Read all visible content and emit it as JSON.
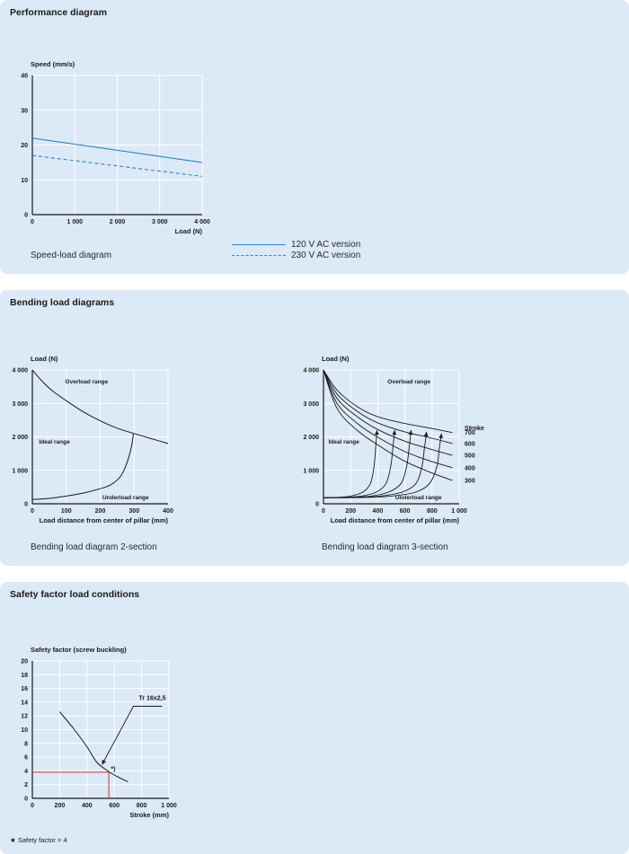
{
  "sections": {
    "performance": {
      "title": "Performance diagram",
      "caption": "Speed-load diagram",
      "legend": [
        {
          "label": "120 V AC version",
          "style": "solid",
          "color": "#2e86c1"
        },
        {
          "label": "230 V AC version",
          "style": "dashed",
          "color": "#2e86c1"
        }
      ]
    },
    "bending": {
      "title": "Bending load diagrams",
      "caption_2": "Bending load diagram 2-section",
      "caption_3": "Bending load diagram 3-section"
    },
    "safety": {
      "title": "Safety factor load conditions",
      "footnote": "Safety factor = 4"
    }
  },
  "chart_data": [
    {
      "type": "line",
      "ylabel": "Speed (mm/s)",
      "xlabel": "Load (N)",
      "xlim": [
        0,
        4000
      ],
      "ylim": [
        0,
        40
      ],
      "xticks": [
        "0",
        "1 000",
        "2 000",
        "3 000",
        "4 000"
      ],
      "yticks": [
        "0",
        "10",
        "20",
        "30",
        "40"
      ],
      "grid": true,
      "series": [
        {
          "name": "120 V AC version",
          "style": "solid",
          "color": "#2e86c1",
          "points": [
            [
              0,
              22
            ],
            [
              4000,
              15
            ]
          ]
        },
        {
          "name": "230 V AC version",
          "style": "dashed",
          "color": "#2e86c1",
          "points": [
            [
              0,
              17
            ],
            [
              4000,
              11
            ]
          ]
        }
      ]
    },
    {
      "type": "line",
      "ylabel": "Load (N)",
      "xlabel": "Load distance from center of pillar (mm)",
      "xlim": [
        0,
        400
      ],
      "ylim": [
        0,
        4000
      ],
      "xticks": [
        "0",
        "100",
        "200",
        "300",
        "400"
      ],
      "yticks": [
        "0",
        "1 000",
        "2 000",
        "3 000",
        "4 000"
      ],
      "grid": true,
      "annotations": [
        "Overload range",
        "Ideal range",
        "Underload range"
      ],
      "series": [
        {
          "points": [
            [
              0,
              4000
            ],
            [
              30,
              3650
            ],
            [
              60,
              3370
            ],
            [
              100,
              3080
            ],
            [
              150,
              2750
            ],
            [
              200,
              2480
            ],
            [
              250,
              2260
            ],
            [
              300,
              2100
            ],
            [
              350,
              1950
            ],
            [
              400,
              1800
            ]
          ]
        },
        {
          "points": [
            [
              0,
              130
            ],
            [
              50,
              160
            ],
            [
              100,
              230
            ],
            [
              150,
              320
            ],
            [
              200,
              450
            ],
            [
              230,
              560
            ],
            [
              255,
              760
            ],
            [
              270,
              1000
            ],
            [
              283,
              1350
            ],
            [
              292,
              1700
            ],
            [
              298,
              2100
            ]
          ]
        }
      ]
    },
    {
      "type": "line",
      "ylabel": "Load (N)",
      "xlabel": "Load distance from center of pillar (mm)",
      "xlim": [
        0,
        1000
      ],
      "ylim": [
        0,
        4000
      ],
      "xticks": [
        "0",
        "200",
        "400",
        "600",
        "800",
        "1 000"
      ],
      "yticks": [
        "0",
        "1 000",
        "2 000",
        "3 000",
        "4 000"
      ],
      "grid": true,
      "annotations": [
        "Overload range",
        "Ideal range",
        "Underload range"
      ],
      "stroke_legend_title": "Stroke",
      "series": [
        {
          "name": "700",
          "points": [
            [
              0,
              4000
            ],
            [
              100,
              3400
            ],
            [
              250,
              2900
            ],
            [
              400,
              2600
            ],
            [
              600,
              2400
            ],
            [
              800,
              2250
            ],
            [
              950,
              2130
            ]
          ],
          "cross": [
            [
              0,
              180
            ],
            [
              300,
              190
            ],
            [
              500,
              230
            ],
            [
              680,
              350
            ],
            [
              780,
              600
            ],
            [
              835,
              1100
            ],
            [
              855,
              1700
            ],
            [
              870,
              2100
            ]
          ]
        },
        {
          "name": "600",
          "points": [
            [
              0,
              4000
            ],
            [
              100,
              3280
            ],
            [
              250,
              2760
            ],
            [
              400,
              2420
            ],
            [
              600,
              2150
            ],
            [
              800,
              1960
            ],
            [
              950,
              1800
            ]
          ],
          "cross": [
            [
              0,
              180
            ],
            [
              250,
              190
            ],
            [
              420,
              230
            ],
            [
              580,
              350
            ],
            [
              680,
              600
            ],
            [
              725,
              1100
            ],
            [
              745,
              1700
            ],
            [
              760,
              2150
            ]
          ]
        },
        {
          "name": "500",
          "points": [
            [
              0,
              4000
            ],
            [
              100,
              3150
            ],
            [
              250,
              2600
            ],
            [
              400,
              2220
            ],
            [
              600,
              1870
            ],
            [
              800,
              1620
            ],
            [
              950,
              1450
            ]
          ],
          "cross": [
            [
              0,
              180
            ],
            [
              200,
              190
            ],
            [
              350,
              230
            ],
            [
              480,
              350
            ],
            [
              570,
              600
            ],
            [
              612,
              1100
            ],
            [
              632,
              1700
            ],
            [
              645,
              2200
            ]
          ]
        },
        {
          "name": "400",
          "points": [
            [
              0,
              4000
            ],
            [
              100,
              3000
            ],
            [
              250,
              2400
            ],
            [
              400,
              1990
            ],
            [
              600,
              1560
            ],
            [
              800,
              1260
            ],
            [
              950,
              1080
            ]
          ],
          "cross": [
            [
              0,
              180
            ],
            [
              150,
              190
            ],
            [
              280,
              230
            ],
            [
              390,
              350
            ],
            [
              460,
              600
            ],
            [
              495,
              1100
            ],
            [
              512,
              1700
            ],
            [
              525,
              2200
            ]
          ]
        },
        {
          "name": "300",
          "points": [
            [
              0,
              4000
            ],
            [
              100,
              2850
            ],
            [
              250,
              2190
            ],
            [
              400,
              1760
            ],
            [
              600,
              1270
            ],
            [
              800,
              920
            ],
            [
              950,
              700
            ]
          ],
          "cross": [
            [
              0,
              180
            ],
            [
              100,
              190
            ],
            [
              200,
              230
            ],
            [
              290,
              350
            ],
            [
              345,
              600
            ],
            [
              372,
              1100
            ],
            [
              385,
              1700
            ],
            [
              395,
              2200
            ]
          ]
        }
      ]
    },
    {
      "type": "line",
      "ylabel": "Safety factor (screw buckling)",
      "xlabel": "Stroke (mm)",
      "xlim": [
        0,
        1000
      ],
      "ylim": [
        0,
        20
      ],
      "xticks": [
        "0",
        "200",
        "400",
        "600",
        "800",
        "1 000"
      ],
      "yticks": [
        "0",
        "2",
        "4",
        "6",
        "8",
        "10",
        "12",
        "14",
        "16",
        "18",
        "20"
      ],
      "grid": true,
      "annotations": [
        "Tr 16x2,5",
        "*)"
      ],
      "series": [
        {
          "name": "Tr 16x2,5",
          "points": [
            [
              200,
              12.6
            ],
            [
              300,
              10.2
            ],
            [
              400,
              7.5
            ],
            [
              470,
              5.3
            ],
            [
              530,
              4.3
            ],
            [
              600,
              3.4
            ],
            [
              700,
              2.4
            ]
          ]
        },
        {
          "name": "Safety factor = 4",
          "color": "#d62f2f",
          "points": [
            [
              0,
              3.8
            ],
            [
              560,
              3.8
            ],
            [
              560,
              0
            ]
          ]
        }
      ]
    }
  ]
}
